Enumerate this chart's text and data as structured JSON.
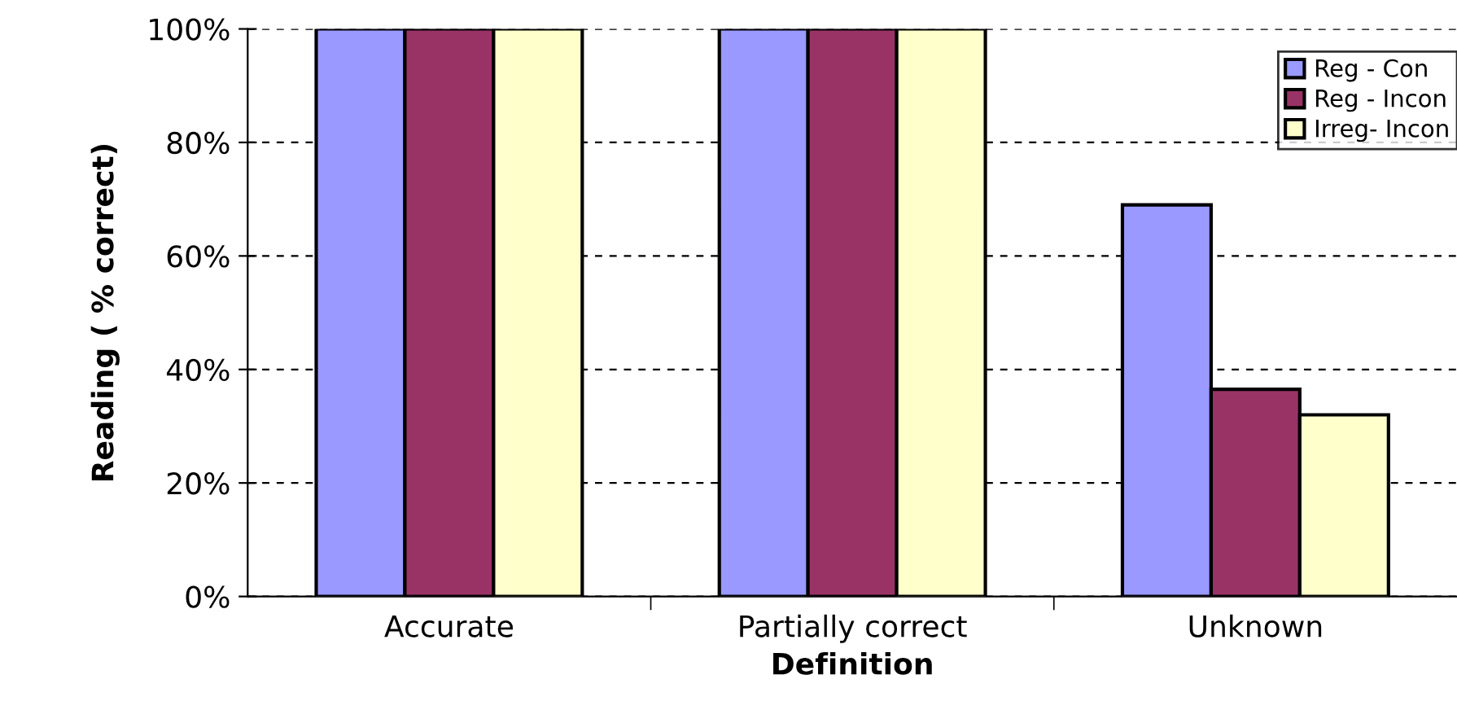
{
  "chart_data": {
    "type": "bar",
    "xlabel": "Definition",
    "ylabel": "Reading ( % correct)",
    "categories": [
      "Accurate",
      "Partially correct",
      "Unknown"
    ],
    "series": [
      {
        "name": "Reg - Con",
        "color": "#9999ff",
        "values": [
          100,
          100,
          69
        ]
      },
      {
        "name": "Reg - Incon",
        "color": "#993366",
        "values": [
          100,
          100,
          36.5
        ]
      },
      {
        "name": "Irreg- Incon",
        "color": "#ffffcc",
        "values": [
          100,
          100,
          32
        ]
      }
    ],
    "ylim": [
      0,
      100
    ],
    "yticks": [
      {
        "value": 0,
        "label": "0%"
      },
      {
        "value": 20,
        "label": "20%"
      },
      {
        "value": 40,
        "label": "40%"
      },
      {
        "value": 60,
        "label": "60%"
      },
      {
        "value": 80,
        "label": "80%"
      },
      {
        "value": 100,
        "label": "100%"
      }
    ],
    "grid": "y",
    "legend": "top right"
  }
}
